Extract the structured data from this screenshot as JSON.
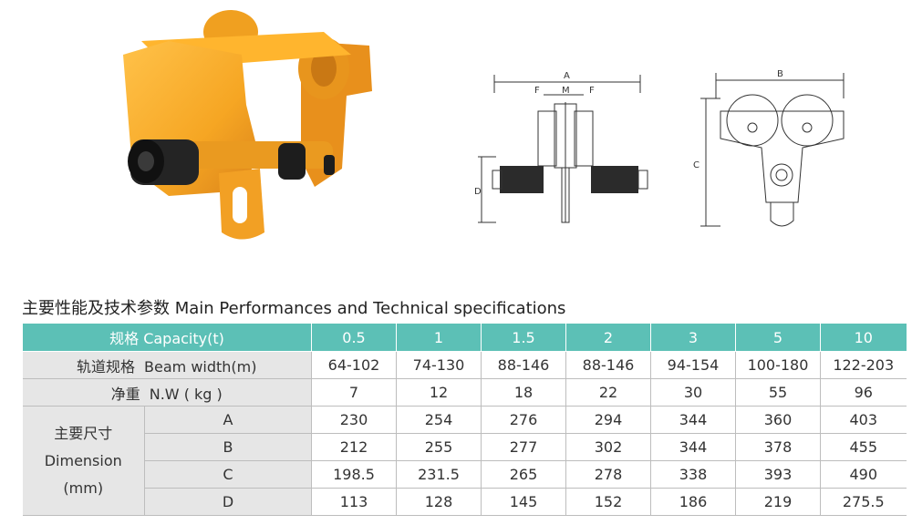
{
  "diagrams": {
    "front_view": {
      "A": "A",
      "F_left": "F",
      "M": "M",
      "F_right": "F",
      "D": "D"
    },
    "side_view": {
      "B": "B",
      "C": "C"
    }
  },
  "spec": {
    "title": "主要性能及技术参数 Main Performances and Technical specifications",
    "header_label": "规格 Capacity(t)",
    "capacities": [
      "0.5",
      "1",
      "1.5",
      "2",
      "3",
      "5",
      "10"
    ],
    "beam_width": {
      "label_cn": "轨道规格",
      "label_en": "Beam width(m)",
      "values": [
        "64-102",
        "74-130",
        "88-146",
        "88-146",
        "94-154",
        "100-180",
        "122-203"
      ]
    },
    "net_weight": {
      "label_cn": "净重",
      "label_en": "N.W ( kg )",
      "values": [
        "7",
        "12",
        "18",
        "22",
        "30",
        "55",
        "96"
      ]
    },
    "dimension": {
      "label_cn": "主要尺寸",
      "label_en": "Dimension",
      "label_unit": "(mm)",
      "rows": [
        {
          "name": "A",
          "values": [
            "230",
            "254",
            "276",
            "294",
            "344",
            "360",
            "403"
          ]
        },
        {
          "name": "B",
          "values": [
            "212",
            "255",
            "277",
            "302",
            "344",
            "378",
            "455"
          ]
        },
        {
          "name": "C",
          "values": [
            "198.5",
            "231.5",
            "265",
            "278",
            "338",
            "393",
            "490"
          ]
        },
        {
          "name": "D",
          "values": [
            "113",
            "128",
            "145",
            "152",
            "186",
            "219",
            "275.5"
          ]
        }
      ]
    }
  },
  "colors": {
    "header_bg": "#5cc0b6",
    "label_bg": "#e6e6e6",
    "trolley_yellow": "#f6a623"
  }
}
